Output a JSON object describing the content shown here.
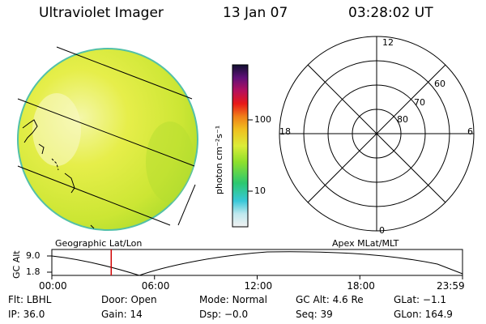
{
  "header": {
    "title": "Ultraviolet Imager",
    "date": "13 Jan 07",
    "time": "03:28:02 UT"
  },
  "colorbar": {
    "unit_label": "photon cm⁻²s⁻¹",
    "tick_high": "100",
    "tick_low": "10"
  },
  "polar_plot": {
    "mlt_top": "12",
    "mlt_bottom": "0",
    "mlt_left": "18",
    "mlt_right": "6",
    "lat_60": "60",
    "lat_70": "70",
    "lat_80": "80"
  },
  "map_labels": {
    "left": "Geographic Lat/Lon",
    "right": "Apex MLat/MLT"
  },
  "altitude_plot": {
    "ylabel": "GC Alt",
    "y_high": "9.0",
    "y_low": "1.8",
    "x_ticks": [
      "00:00",
      "06:00",
      "12:00",
      "18:00",
      "23:59"
    ],
    "current_marker_hours": 3.47,
    "current_marker_color": "#d00000"
  },
  "info": {
    "row1": [
      {
        "label": "Flt:",
        "value": "LBHL"
      },
      {
        "label": "Door:",
        "value": "Open"
      },
      {
        "label": "Mode:",
        "value": "Normal"
      },
      {
        "label": "GC Alt:",
        "value": "4.6 Re"
      },
      {
        "label": "GLat:",
        "value": "−1.1"
      }
    ],
    "row2": [
      {
        "label": "IP:",
        "value": "36.0"
      },
      {
        "label": "Gain:",
        "value": "14"
      },
      {
        "label": "Dsp:",
        "value": "−0.0"
      },
      {
        "label": "Seq:",
        "value": "39"
      },
      {
        "label": "GLon:",
        "value": "164.9"
      }
    ]
  }
}
